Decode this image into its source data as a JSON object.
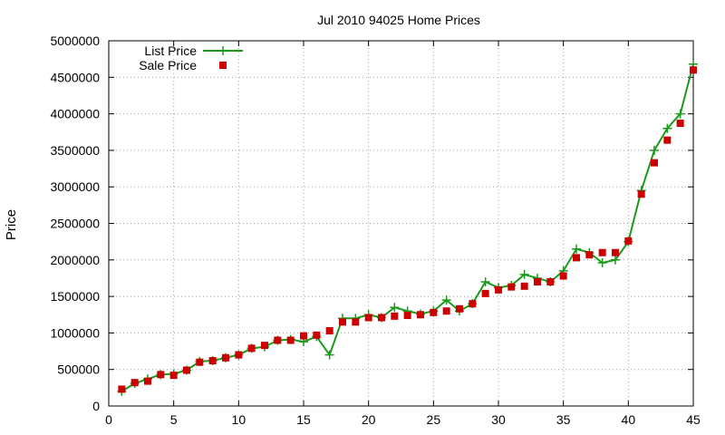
{
  "chart_data": {
    "type": "line",
    "title": "Jul 2010 94025 Home Prices",
    "xlabel": "",
    "ylabel": "Price",
    "xlim": [
      0,
      45
    ],
    "ylim": [
      0,
      5000000
    ],
    "x_ticks": [
      0,
      5,
      10,
      15,
      20,
      25,
      30,
      35,
      40,
      45
    ],
    "y_ticks": [
      0,
      500000,
      1000000,
      1500000,
      2000000,
      2500000,
      3000000,
      3500000,
      4000000,
      4500000,
      5000000
    ],
    "x_tick_labels": [
      "0",
      "5",
      "10",
      "15",
      "20",
      "25",
      "30",
      "35",
      "40",
      "45"
    ],
    "y_tick_labels": [
      "0",
      "500000",
      "1000000",
      "1500000",
      "2000000",
      "2500000",
      "3000000",
      "3500000",
      "4000000",
      "4500000",
      "5000000"
    ],
    "grid": true,
    "legend_position": "top-left",
    "x": [
      1,
      2,
      3,
      4,
      5,
      6,
      7,
      8,
      9,
      10,
      11,
      12,
      13,
      14,
      15,
      16,
      17,
      18,
      19,
      20,
      21,
      22,
      23,
      24,
      25,
      26,
      27,
      28,
      29,
      30,
      31,
      32,
      33,
      34,
      35,
      36,
      37,
      38,
      39,
      40,
      41,
      42,
      43,
      44,
      45
    ],
    "series": [
      {
        "name": "List Price",
        "style": "line-with-plus-markers",
        "color": "#1a9a1a",
        "values": [
          200000,
          310000,
          370000,
          430000,
          440000,
          490000,
          610000,
          620000,
          660000,
          700000,
          790000,
          810000,
          900000,
          910000,
          880000,
          950000,
          700000,
          1200000,
          1200000,
          1250000,
          1210000,
          1350000,
          1300000,
          1260000,
          1300000,
          1450000,
          1300000,
          1400000,
          1700000,
          1620000,
          1650000,
          1800000,
          1750000,
          1700000,
          1850000,
          2150000,
          2100000,
          1960000,
          2000000,
          2250000,
          2950000,
          3500000,
          3800000,
          4000000,
          4680000
        ]
      },
      {
        "name": "Sale Price",
        "style": "square-markers",
        "color": "#cc0000",
        "values": [
          230000,
          320000,
          340000,
          430000,
          420000,
          490000,
          600000,
          620000,
          660000,
          700000,
          790000,
          830000,
          900000,
          900000,
          960000,
          970000,
          1030000,
          1150000,
          1150000,
          1210000,
          1210000,
          1230000,
          1240000,
          1250000,
          1280000,
          1300000,
          1330000,
          1400000,
          1540000,
          1590000,
          1630000,
          1640000,
          1700000,
          1700000,
          1780000,
          2030000,
          2070000,
          2100000,
          2100000,
          2260000,
          2900000,
          3330000,
          3640000,
          3870000,
          4600000
        ]
      }
    ]
  }
}
